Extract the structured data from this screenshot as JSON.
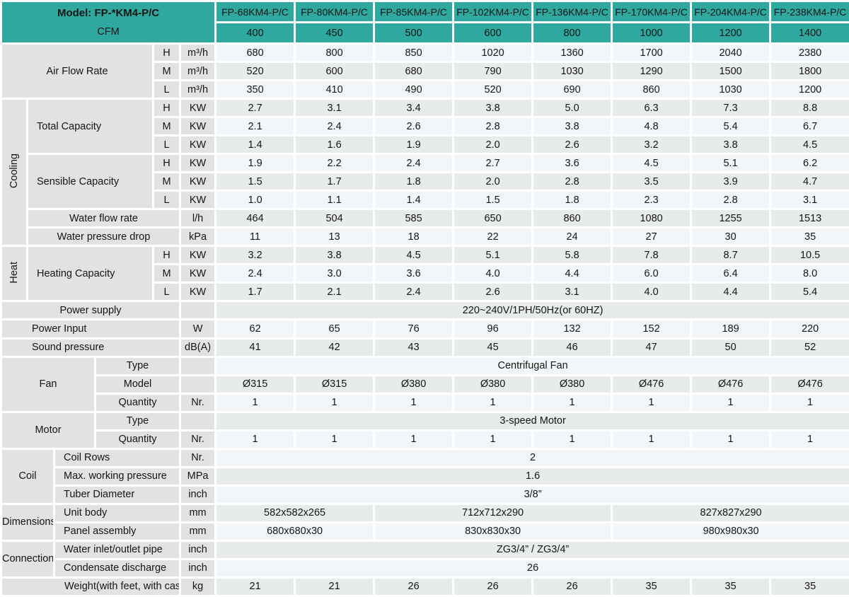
{
  "title_block": {
    "model_label": "Model: FP-*KM4-P/C",
    "cfm_label": "CFM"
  },
  "columns": {
    "models": [
      "FP-68KM4-P/C",
      "FP-80KM4-P/C",
      "FP-85KM4-P/C",
      "FP-102KM4-P/C",
      "FP-136KM4-P/C",
      "FP-170KM4-P/C",
      "FP-204KM4-P/C",
      "FP-238KM4-P/C"
    ],
    "cfm": [
      "400",
      "450",
      "500",
      "600",
      "800",
      "1000",
      "1200",
      "1400"
    ]
  },
  "colors": {
    "teal": "#2FA8A0",
    "label_bg": "#E0E2E3",
    "row_light": "#F2F6F8",
    "row_dark": "#E8EBEC",
    "border": "#FFFFFF",
    "text": "#151515"
  },
  "rows": [
    {
      "label": {
        "text": "Air Flow Rate",
        "colspan": 4,
        "rowspan": 3
      },
      "hml": "H",
      "unit": "m³/h",
      "values": [
        "680",
        "800",
        "850",
        "1020",
        "1360",
        "1700",
        "2040",
        "2380"
      ],
      "s": "a"
    },
    {
      "hml": "M",
      "unit": "m³/h",
      "values": [
        "520",
        "600",
        "680",
        "790",
        "1030",
        "1290",
        "1500",
        "1800"
      ],
      "s": "b"
    },
    {
      "hml": "L",
      "unit": "m³/h",
      "values": [
        "350",
        "410",
        "490",
        "520",
        "690",
        "860",
        "1030",
        "1200"
      ],
      "s": "a"
    },
    {
      "group": {
        "text": "Cooling",
        "rowspan": 8,
        "colspan": 1,
        "vertical": true
      },
      "label": {
        "text": "Total Capacity",
        "colspan": 3,
        "rowspan": 3,
        "align": "left"
      },
      "hml": "H",
      "unit": "KW",
      "values": [
        "2.7",
        "3.1",
        "3.4",
        "3.8",
        "5.0",
        "6.3",
        "7.3",
        "8.8"
      ],
      "s": "b"
    },
    {
      "hml": "M",
      "unit": "KW",
      "values": [
        "2.1",
        "2.4",
        "2.6",
        "2.8",
        "3.8",
        "4.8",
        "5.4",
        "6.7"
      ],
      "s": "a"
    },
    {
      "hml": "L",
      "unit": "KW",
      "values": [
        "1.4",
        "1.6",
        "1.9",
        "2.0",
        "2.6",
        "3.2",
        "3.8",
        "4.5"
      ],
      "s": "b"
    },
    {
      "label": {
        "text": "Sensible Capacity",
        "colspan": 3,
        "rowspan": 3,
        "align": "left"
      },
      "hml": "H",
      "unit": "KW",
      "values": [
        "1.9",
        "2.2",
        "2.4",
        "2.7",
        "3.6",
        "4.5",
        "5.1",
        "6.2"
      ],
      "s": "a"
    },
    {
      "hml": "M",
      "unit": "KW",
      "values": [
        "1.5",
        "1.7",
        "1.8",
        "2.0",
        "2.8",
        "3.5",
        "3.9",
        "4.7"
      ],
      "s": "b"
    },
    {
      "hml": "L",
      "unit": "KW",
      "values": [
        "1.0",
        "1.1",
        "1.4",
        "1.5",
        "1.8",
        "2.3",
        "2.8",
        "3.1"
      ],
      "s": "a"
    },
    {
      "label": {
        "text": "Water flow rate",
        "colspan": 4
      },
      "unit": "l/h",
      "values": [
        "464",
        "504",
        "585",
        "650",
        "860",
        "1080",
        "1255",
        "1513"
      ],
      "s": "b"
    },
    {
      "label": {
        "text": "Water pressure drop",
        "colspan": 4
      },
      "unit": "kPa",
      "values": [
        "11",
        "13",
        "18",
        "22",
        "24",
        "27",
        "30",
        "35"
      ],
      "s": "a"
    },
    {
      "group": {
        "text": "Heat",
        "rowspan": 3,
        "colspan": 1,
        "vertical": true
      },
      "label": {
        "text": "Heating Capacity",
        "colspan": 3,
        "rowspan": 3,
        "align": "left"
      },
      "hml": "H",
      "unit": "KW",
      "values": [
        "3.2",
        "3.8",
        "4.5",
        "5.1",
        "5.8",
        "7.8",
        "8.7",
        "10.5"
      ],
      "s": "b"
    },
    {
      "hml": "M",
      "unit": "KW",
      "values": [
        "2.4",
        "3.0",
        "3.6",
        "4.0",
        "4.4",
        "6.0",
        "6.4",
        "8.0"
      ],
      "s": "a"
    },
    {
      "hml": "L",
      "unit": "KW",
      "values": [
        "1.7",
        "2.1",
        "2.4",
        "2.6",
        "3.1",
        "4.0",
        "4.4",
        "5.4"
      ],
      "s": "b"
    },
    {
      "label": {
        "text": "Power supply",
        "colspan": 5
      },
      "unit": "",
      "merged": "220~240V/1PH/50Hz(or 60HZ)",
      "s": "b"
    },
    {
      "label": {
        "text": "Power Input",
        "colspan": 5,
        "align": "left2"
      },
      "unit": "W",
      "values": [
        "62",
        "65",
        "76",
        "96",
        "132",
        "152",
        "189",
        "220"
      ],
      "s": "a"
    },
    {
      "label": {
        "text": "Sound pressure",
        "colspan": 5,
        "align": "left2"
      },
      "unit": "dB(A)",
      "values": [
        "41",
        "42",
        "43",
        "45",
        "46",
        "47",
        "50",
        "52"
      ],
      "s": "b"
    },
    {
      "group": {
        "text": "Fan",
        "rowspan": 3,
        "colspan": 3
      },
      "label": {
        "text": "Type",
        "colspan": 2
      },
      "unit": "",
      "merged": "Centrifugal Fan",
      "s": "a"
    },
    {
      "label": {
        "text": "Model",
        "colspan": 2
      },
      "unit": "",
      "values": [
        "Ø315",
        "Ø315",
        "Ø380",
        "Ø380",
        "Ø380",
        "Ø476",
        "Ø476",
        "Ø476"
      ],
      "s": "b"
    },
    {
      "label": {
        "text": "Quantity",
        "colspan": 2
      },
      "unit": "Nr.",
      "values": [
        "1",
        "1",
        "1",
        "1",
        "1",
        "1",
        "1",
        "1"
      ],
      "s": "a"
    },
    {
      "group": {
        "text": "Motor",
        "rowspan": 2,
        "colspan": 3
      },
      "label": {
        "text": "Type",
        "colspan": 2
      },
      "unit": "",
      "merged": "3-speed Motor",
      "s": "b"
    },
    {
      "label": {
        "text": "Quantity",
        "colspan": 2
      },
      "unit": "Nr.",
      "values": [
        "1",
        "1",
        "1",
        "1",
        "1",
        "1",
        "1",
        "1"
      ],
      "s": "a"
    },
    {
      "group": {
        "text": "Coil",
        "rowspan": 3,
        "colspan": 2
      },
      "label": {
        "text": "Coil Rows",
        "colspan": 3,
        "align": "left"
      },
      "unit": "Nr.",
      "merged": "2",
      "s": "a"
    },
    {
      "label": {
        "text": "Max. working pressure",
        "colspan": 3,
        "align": "left"
      },
      "unit": "MPa",
      "merged": "1.6",
      "s": "b"
    },
    {
      "label": {
        "text": "Tuber Diameter",
        "colspan": 3,
        "align": "left"
      },
      "unit": "inch",
      "merged": "3/8”",
      "s": "a"
    },
    {
      "group": {
        "text": "Dimensions",
        "rowspan": 2,
        "colspan": 2
      },
      "label": {
        "text": "Unit body",
        "colspan": 3,
        "align": "left"
      },
      "unit": "mm",
      "multi": [
        {
          "text": "582x582x265",
          "span": 2
        },
        {
          "text": "712x712x290",
          "span": 3
        },
        {
          "text": "827x827x290",
          "span": 3
        }
      ],
      "s": "b"
    },
    {
      "label": {
        "text": "Panel assembly",
        "colspan": 3,
        "align": "left"
      },
      "unit": "mm",
      "multi": [
        {
          "text": "680x680x30",
          "span": 2
        },
        {
          "text": "830x830x30",
          "span": 3
        },
        {
          "text": "980x980x30",
          "span": 3
        }
      ],
      "s": "a"
    },
    {
      "group": {
        "text": "Connection",
        "rowspan": 2,
        "colspan": 2
      },
      "label": {
        "text": "Water inlet/outlet pipe",
        "colspan": 3,
        "align": "left"
      },
      "unit": "inch",
      "merged": "ZG3/4” / ZG3/4”",
      "s": "b"
    },
    {
      "label": {
        "text": "Condensate discharge",
        "colspan": 3,
        "align": "left"
      },
      "unit": "inch",
      "merged": "26",
      "s": "a"
    },
    {
      "label": {
        "text": "Weight(with feet, with casing)",
        "colspan": 5,
        "align": "left3"
      },
      "unit": "kg",
      "values": [
        "21",
        "21",
        "26",
        "26",
        "26",
        "35",
        "35",
        "35"
      ],
      "s": "b"
    }
  ]
}
